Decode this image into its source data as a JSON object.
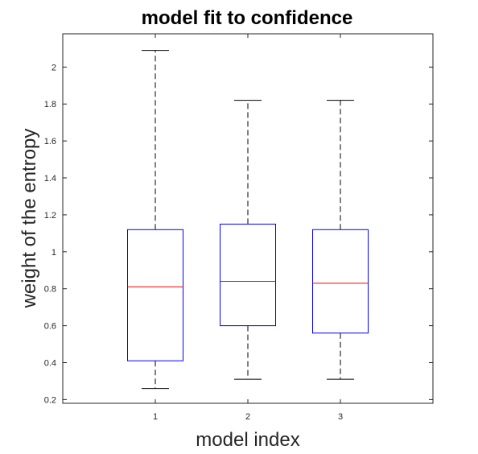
{
  "chart_data": {
    "type": "box",
    "title": "model fit to confidence",
    "xlabel": "model index",
    "ylabel": "weight of the entropy",
    "categories": [
      "1",
      "2",
      "3"
    ],
    "x_ticks": [
      "1",
      "2",
      "3"
    ],
    "y_ticks": [
      "0.2",
      "0.4",
      "0.6",
      "0.8",
      "1",
      "1.2",
      "1.4",
      "1.6",
      "1.8",
      "2"
    ],
    "ylim": [
      0.18,
      2.18
    ],
    "boxes": [
      {
        "category": "1",
        "whisker_low": 0.26,
        "q1": 0.41,
        "median": 0.81,
        "q3": 1.12,
        "whisker_high": 2.09
      },
      {
        "category": "2",
        "whisker_low": 0.31,
        "q1": 0.6,
        "median": 0.84,
        "q3": 1.15,
        "whisker_high": 1.82
      },
      {
        "category": "3",
        "whisker_low": 0.31,
        "q1": 0.56,
        "median": 0.83,
        "q3": 1.12,
        "whisker_high": 1.82
      }
    ],
    "colors": {
      "box": "#0000ff",
      "median": "#ff0000",
      "whisker": "#000000",
      "axes": "#262626"
    },
    "grid": false,
    "legend": "none"
  }
}
